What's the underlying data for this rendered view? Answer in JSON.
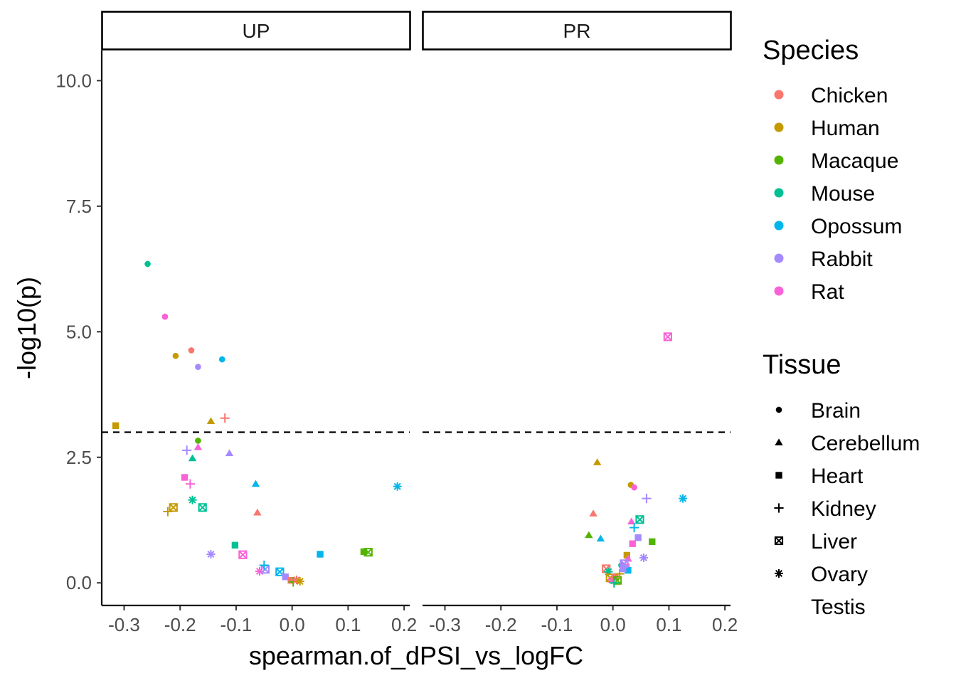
{
  "chart_data": {
    "type": "scatter",
    "xlabel": "spearman.of_dPSI_vs_logFC",
    "ylabel": "-log10(p)",
    "facets": [
      "UP",
      "PR"
    ],
    "xlim": [
      -0.34,
      0.21
    ],
    "ylim": [
      -0.45,
      10.6
    ],
    "x_ticks": [
      -0.3,
      -0.2,
      -0.1,
      0.0,
      0.1,
      0.2
    ],
    "x_tick_labels": [
      "-0.3",
      "-0.2",
      "-0.1",
      "0.0",
      "0.1",
      "0.2"
    ],
    "y_ticks": [
      0,
      2.5,
      5,
      7.5,
      10
    ],
    "y_tick_labels": [
      "0.0",
      "2.5",
      "5.0",
      "7.5",
      "10.0"
    ],
    "threshold_line": 3,
    "grid": false,
    "legend_position": "right",
    "species_title": "Species",
    "species": [
      {
        "name": "Chicken",
        "color": "#F8766D"
      },
      {
        "name": "Human",
        "color": "#C49A00"
      },
      {
        "name": "Macaque",
        "color": "#53B400"
      },
      {
        "name": "Mouse",
        "color": "#00C094"
      },
      {
        "name": "Opossum",
        "color": "#00B6EB"
      },
      {
        "name": "Rabbit",
        "color": "#A58AFF"
      },
      {
        "name": "Rat",
        "color": "#FB61D7"
      }
    ],
    "tissue_title": "Tissue",
    "tissues": [
      {
        "name": "Brain",
        "shape": "circle"
      },
      {
        "name": "Cerebellum",
        "shape": "triangle"
      },
      {
        "name": "Heart",
        "shape": "square"
      },
      {
        "name": "Kidney",
        "shape": "plus"
      },
      {
        "name": "Liver",
        "shape": "boxx"
      },
      {
        "name": "Ovary",
        "shape": "asterisk"
      },
      {
        "name": "Testis",
        "shape": "none"
      }
    ],
    "points": [
      {
        "facet": "UP",
        "x": -0.258,
        "y": 6.35,
        "species": "Mouse",
        "tissue": "Brain"
      },
      {
        "facet": "UP",
        "x": -0.227,
        "y": 5.3,
        "species": "Rat",
        "tissue": "Brain"
      },
      {
        "facet": "UP",
        "x": -0.18,
        "y": 4.63,
        "species": "Chicken",
        "tissue": "Brain"
      },
      {
        "facet": "UP",
        "x": -0.208,
        "y": 4.52,
        "species": "Human",
        "tissue": "Brain"
      },
      {
        "facet": "UP",
        "x": -0.125,
        "y": 4.45,
        "species": "Opossum",
        "tissue": "Brain"
      },
      {
        "facet": "UP",
        "x": -0.168,
        "y": 4.3,
        "species": "Rabbit",
        "tissue": "Brain"
      },
      {
        "facet": "UP",
        "x": -0.168,
        "y": 2.83,
        "species": "Macaque",
        "tissue": "Brain"
      },
      {
        "facet": "UP",
        "x": -0.315,
        "y": 3.13,
        "species": "Human",
        "tissue": "Heart"
      },
      {
        "facet": "UP",
        "x": -0.145,
        "y": 3.22,
        "species": "Human",
        "tissue": "Cerebellum"
      },
      {
        "facet": "UP",
        "x": -0.12,
        "y": 3.28,
        "species": "Chicken",
        "tissue": "Kidney"
      },
      {
        "facet": "UP",
        "x": -0.188,
        "y": 2.64,
        "species": "Rabbit",
        "tissue": "Kidney"
      },
      {
        "facet": "UP",
        "x": -0.168,
        "y": 2.7,
        "species": "Rat",
        "tissue": "Cerebellum"
      },
      {
        "facet": "UP",
        "x": -0.178,
        "y": 2.48,
        "species": "Mouse",
        "tissue": "Cerebellum"
      },
      {
        "facet": "UP",
        "x": -0.112,
        "y": 2.58,
        "species": "Rabbit",
        "tissue": "Cerebellum"
      },
      {
        "facet": "UP",
        "x": -0.192,
        "y": 2.1,
        "species": "Rat",
        "tissue": "Heart"
      },
      {
        "facet": "UP",
        "x": -0.182,
        "y": 1.97,
        "species": "Rat",
        "tissue": "Kidney"
      },
      {
        "facet": "UP",
        "x": -0.065,
        "y": 1.97,
        "species": "Opossum",
        "tissue": "Cerebellum"
      },
      {
        "facet": "UP",
        "x": -0.222,
        "y": 1.42,
        "species": "Human",
        "tissue": "Kidney"
      },
      {
        "facet": "UP",
        "x": -0.212,
        "y": 1.5,
        "species": "Human",
        "tissue": "Liver"
      },
      {
        "facet": "UP",
        "x": -0.178,
        "y": 1.65,
        "species": "Mouse",
        "tissue": "Ovary"
      },
      {
        "facet": "UP",
        "x": -0.16,
        "y": 1.5,
        "species": "Mouse",
        "tissue": "Liver"
      },
      {
        "facet": "UP",
        "x": -0.062,
        "y": 1.4,
        "species": "Chicken",
        "tissue": "Cerebellum"
      },
      {
        "facet": "UP",
        "x": 0.188,
        "y": 1.92,
        "species": "Opossum",
        "tissue": "Ovary"
      },
      {
        "facet": "UP",
        "x": -0.145,
        "y": 0.57,
        "species": "Rabbit",
        "tissue": "Ovary"
      },
      {
        "facet": "UP",
        "x": -0.102,
        "y": 0.75,
        "species": "Mouse",
        "tissue": "Heart"
      },
      {
        "facet": "UP",
        "x": -0.088,
        "y": 0.56,
        "species": "Rat",
        "tissue": "Liver"
      },
      {
        "facet": "UP",
        "x": 0.05,
        "y": 0.57,
        "species": "Opossum",
        "tissue": "Heart"
      },
      {
        "facet": "UP",
        "x": 0.128,
        "y": 0.62,
        "species": "Macaque",
        "tissue": "Heart"
      },
      {
        "facet": "UP",
        "x": 0.136,
        "y": 0.61,
        "species": "Macaque",
        "tissue": "Liver"
      },
      {
        "facet": "UP",
        "x": -0.058,
        "y": 0.23,
        "species": "Rat",
        "tissue": "Ovary"
      },
      {
        "facet": "UP",
        "x": -0.048,
        "y": 0.27,
        "species": "Rabbit",
        "tissue": "Liver"
      },
      {
        "facet": "UP",
        "x": -0.05,
        "y": 0.35,
        "species": "Opossum",
        "tissue": "Kidney"
      },
      {
        "facet": "UP",
        "x": -0.022,
        "y": 0.22,
        "species": "Opossum",
        "tissue": "Liver"
      },
      {
        "facet": "UP",
        "x": -0.012,
        "y": 0.12,
        "species": "Rabbit",
        "tissue": "Heart"
      },
      {
        "facet": "UP",
        "x": -0.002,
        "y": 0.05,
        "species": "Chicken",
        "tissue": "Heart"
      },
      {
        "facet": "UP",
        "x": 0.002,
        "y": 0.02,
        "species": "Macaque",
        "tissue": "Kidney"
      },
      {
        "facet": "UP",
        "x": 0.008,
        "y": 0.06,
        "species": "Chicken",
        "tissue": "Ovary"
      },
      {
        "facet": "UP",
        "x": 0.014,
        "y": 0.03,
        "species": "Human",
        "tissue": "Ovary"
      },
      {
        "facet": "PR",
        "x": 0.098,
        "y": 4.9,
        "species": "Rat",
        "tissue": "Liver"
      },
      {
        "facet": "PR",
        "x": -0.028,
        "y": 2.4,
        "species": "Human",
        "tissue": "Cerebellum"
      },
      {
        "facet": "PR",
        "x": 0.032,
        "y": 1.95,
        "species": "Human",
        "tissue": "Brain"
      },
      {
        "facet": "PR",
        "x": 0.038,
        "y": 1.9,
        "species": "Rat",
        "tissue": "Brain"
      },
      {
        "facet": "PR",
        "x": 0.06,
        "y": 1.68,
        "species": "Rabbit",
        "tissue": "Kidney"
      },
      {
        "facet": "PR",
        "x": 0.125,
        "y": 1.68,
        "species": "Opossum",
        "tissue": "Ovary"
      },
      {
        "facet": "PR",
        "x": -0.035,
        "y": 1.38,
        "species": "Chicken",
        "tissue": "Cerebellum"
      },
      {
        "facet": "PR",
        "x": 0.033,
        "y": 1.22,
        "species": "Rat",
        "tissue": "Cerebellum"
      },
      {
        "facet": "PR",
        "x": 0.048,
        "y": 1.26,
        "species": "Mouse",
        "tissue": "Liver"
      },
      {
        "facet": "PR",
        "x": 0.038,
        "y": 1.1,
        "species": "Opossum",
        "tissue": "Kidney"
      },
      {
        "facet": "PR",
        "x": -0.043,
        "y": 0.95,
        "species": "Macaque",
        "tissue": "Cerebellum"
      },
      {
        "facet": "PR",
        "x": -0.022,
        "y": 0.88,
        "species": "Opossum",
        "tissue": "Cerebellum"
      },
      {
        "facet": "PR",
        "x": 0.045,
        "y": 0.9,
        "species": "Rabbit",
        "tissue": "Heart"
      },
      {
        "facet": "PR",
        "x": 0.07,
        "y": 0.82,
        "species": "Macaque",
        "tissue": "Heart"
      },
      {
        "facet": "PR",
        "x": 0.035,
        "y": 0.78,
        "species": "Rat",
        "tissue": "Heart"
      },
      {
        "facet": "PR",
        "x": 0.055,
        "y": 0.5,
        "species": "Rabbit",
        "tissue": "Ovary"
      },
      {
        "facet": "PR",
        "x": 0.025,
        "y": 0.55,
        "species": "Human",
        "tissue": "Heart"
      },
      {
        "facet": "PR",
        "x": 0.027,
        "y": 0.48,
        "species": "Rat",
        "tissue": "Cerebellum"
      },
      {
        "facet": "PR",
        "x": 0.015,
        "y": 0.35,
        "species": "Mouse",
        "tissue": "Brain"
      },
      {
        "facet": "PR",
        "x": 0.022,
        "y": 0.3,
        "species": "Rat",
        "tissue": "Liver"
      },
      {
        "facet": "PR",
        "x": 0.027,
        "y": 0.25,
        "species": "Opossum",
        "tissue": "Heart"
      },
      {
        "facet": "PR",
        "x": 0.02,
        "y": 0.38,
        "species": "Rabbit",
        "tissue": "Liver"
      },
      {
        "facet": "PR",
        "x": -0.012,
        "y": 0.28,
        "species": "Chicken",
        "tissue": "Liver"
      },
      {
        "facet": "PR",
        "x": -0.008,
        "y": 0.22,
        "species": "Mouse",
        "tissue": "Ovary"
      },
      {
        "facet": "PR",
        "x": -0.005,
        "y": 0.1,
        "species": "Human",
        "tissue": "Liver"
      },
      {
        "facet": "PR",
        "x": -0.002,
        "y": 0.06,
        "species": "Rat",
        "tissue": "Ovary"
      },
      {
        "facet": "PR",
        "x": 0.004,
        "y": 0.12,
        "species": "Chicken",
        "tissue": "Heart"
      },
      {
        "facet": "PR",
        "x": 0.008,
        "y": 0.05,
        "species": "Macaque",
        "tissue": "Liver"
      },
      {
        "facet": "PR",
        "x": 0.012,
        "y": 0.18,
        "species": "Human",
        "tissue": "Kidney"
      },
      {
        "facet": "PR",
        "x": 0.002,
        "y": 0.0,
        "species": "Mouse",
        "tissue": "Kidney"
      },
      {
        "facet": "PR",
        "x": 0.018,
        "y": 0.28,
        "species": "Rabbit",
        "tissue": "Heart"
      }
    ]
  }
}
